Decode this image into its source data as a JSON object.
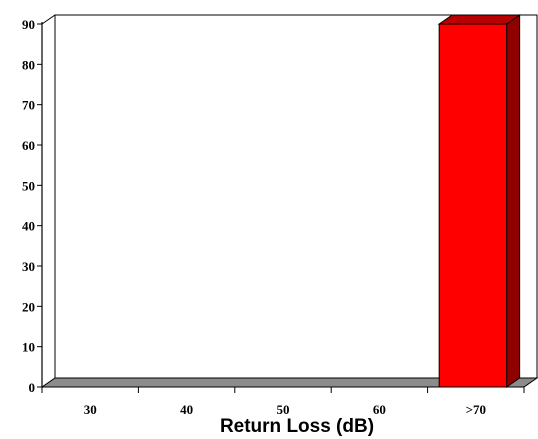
{
  "chart_data": {
    "type": "bar",
    "title": "",
    "xlabel": "Return  Loss (dB)",
    "ylabel": "",
    "categories": [
      "30",
      "40",
      "50",
      "60",
      ">70"
    ],
    "values": [
      0,
      0,
      0,
      0,
      90
    ],
    "ylim": [
      0,
      90
    ],
    "yticks": [
      0,
      10,
      20,
      30,
      40,
      50,
      60,
      70,
      80,
      90
    ],
    "grid": false,
    "legend": "none",
    "style": "3d-column",
    "colors": {
      "bar_front": "#ff0000",
      "bar_side": "#8f0000",
      "bar_top": "#b80000",
      "floor": "#8c8c8c",
      "axis": "#000000"
    }
  }
}
